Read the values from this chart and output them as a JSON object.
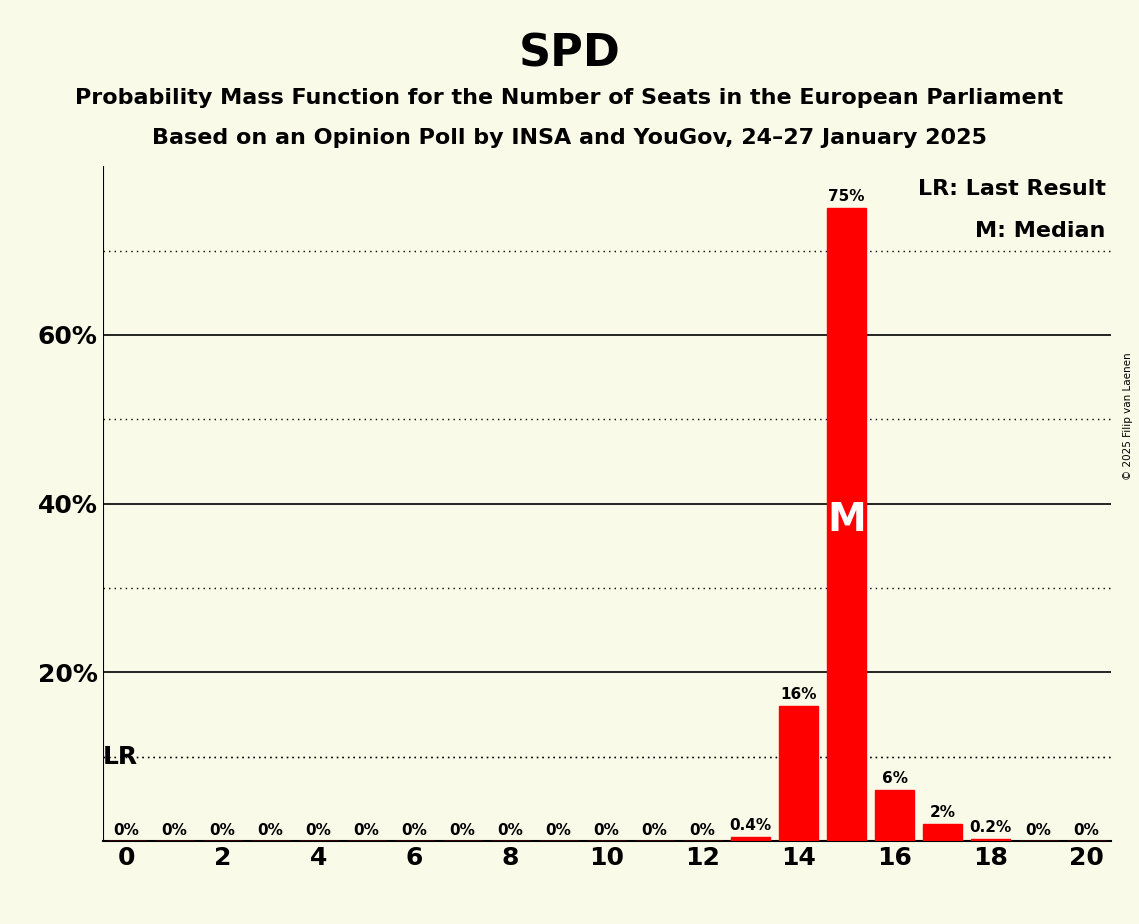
{
  "title": "SPD",
  "subtitle1": "Probability Mass Function for the Number of Seats in the European Parliament",
  "subtitle2": "Based on an Opinion Poll by INSA and YouGov, 24–27 January 2025",
  "copyright": "© 2025 Filip van Laenen",
  "background_color": "#FAFAE8",
  "bar_color": "#FF0000",
  "x_values": [
    0,
    1,
    2,
    3,
    4,
    5,
    6,
    7,
    8,
    9,
    10,
    11,
    12,
    13,
    14,
    15,
    16,
    17,
    18,
    19,
    20
  ],
  "y_values": [
    0,
    0,
    0,
    0,
    0,
    0,
    0,
    0,
    0,
    0,
    0,
    0,
    0,
    0.4,
    16,
    75,
    6,
    2,
    0.2,
    0,
    0
  ],
  "labels": [
    "0%",
    "0%",
    "0%",
    "0%",
    "0%",
    "0%",
    "0%",
    "0%",
    "0%",
    "0%",
    "0%",
    "0%",
    "0%",
    "0.4%",
    "16%",
    "75%",
    "6%",
    "2%",
    "0.2%",
    "0%",
    "0%"
  ],
  "xlim": [
    -0.5,
    20.5
  ],
  "ylim": [
    0,
    80
  ],
  "xticks": [
    0,
    2,
    4,
    6,
    8,
    10,
    12,
    14,
    16,
    18,
    20
  ],
  "yticks_solid": [
    0,
    20,
    40,
    60
  ],
  "yticks_dotted": [
    10,
    30,
    50,
    70
  ],
  "median_x": 15,
  "median_label": "M",
  "lr_y": 10,
  "lr_label": "LR",
  "legend_lr": "LR: Last Result",
  "legend_m": "M: Median",
  "bar_width": 0.8,
  "title_fontsize": 32,
  "subtitle_fontsize": 16,
  "label_fontsize": 11,
  "axis_fontsize": 18,
  "legend_fontsize": 16,
  "median_label_fontsize": 28,
  "lr_label_fontsize": 18
}
